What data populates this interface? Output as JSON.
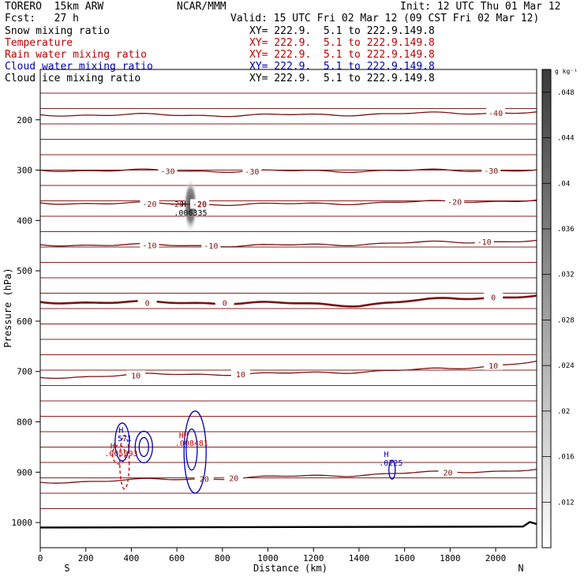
{
  "header": {
    "model": "TORERO  15km ARW",
    "center": "NCAR/MMM",
    "init": "Init: 12 UTC Thu 01 Mar 12",
    "fcst": "Fcst:   27 h",
    "valid": "Valid: 15 UTC Fri 02 Mar 12 (09 CST Fri 02 Mar 12)",
    "fields": [
      {
        "label": "Snow mixing ratio",
        "xy": "XY= 222.9.  5.1 to 222.9.149.8",
        "color": "#000000"
      },
      {
        "label": "Temperature",
        "xy": "XY= 222.9.  5.1 to 222.9.149.8",
        "color": "#c00000"
      },
      {
        "label": "Rain water mixing ratio",
        "xy": "XY= 222.9.  5.1 to 222.9.149.8",
        "color": "#c00000"
      },
      {
        "label": "Cloud water mixing ratio",
        "xy": "XY= 222.9.  5.1 to 222.9.149.8",
        "color": "#0000b0"
      },
      {
        "label": "Cloud ice mixing ratio",
        "xy": "XY= 222.9.  5.1 to 222.9.149.8",
        "color": "#000000"
      }
    ]
  },
  "chart_data": {
    "type": "contour",
    "xlabel": "Distance (km)",
    "ylabel": "Pressure (hPa)",
    "xlim": [
      0,
      2180
    ],
    "ylim": [
      1050,
      100
    ],
    "x_ticks": [
      0,
      200,
      400,
      600,
      800,
      1000,
      1200,
      1400,
      1600,
      1800,
      2000
    ],
    "y_ticks": [
      200,
      300,
      400,
      500,
      600,
      700,
      800,
      900,
      1000
    ],
    "x_end_labels": {
      "left": "S",
      "right": "N"
    },
    "colorbar": {
      "unit": "g kg⁻¹",
      "ticks": [
        ".012",
        ".016",
        ".02",
        ".024",
        ".028",
        ".032",
        ".036",
        ".04",
        ".044",
        ".048"
      ],
      "values": [
        0.012,
        0.016,
        0.02,
        0.024,
        0.028,
        0.032,
        0.036,
        0.04,
        0.044,
        0.048
      ],
      "range": [
        0.008,
        0.05
      ]
    },
    "temperature_isotherms": [
      {
        "label": "-40",
        "p": [
          [
            0,
            190
          ],
          [
            1000,
            191
          ],
          [
            2180,
            185
          ]
        ],
        "labels_at": [
          2000
        ]
      },
      {
        "label": "-30",
        "p": [
          [
            0,
            300
          ],
          [
            1000,
            302
          ],
          [
            2180,
            300
          ]
        ],
        "labels_at": [
          560,
          930,
          1980
        ]
      },
      {
        "label": "-20",
        "p": [
          [
            0,
            365
          ],
          [
            1000,
            368
          ],
          [
            2180,
            360
          ]
        ],
        "labels_at": [
          480,
          700,
          1820
        ]
      },
      {
        "label": "-10",
        "p": [
          [
            0,
            448
          ],
          [
            1000,
            450
          ],
          [
            2180,
            440
          ]
        ],
        "labels_at": [
          480,
          750,
          1950
        ]
      },
      {
        "label": "0",
        "p": [
          [
            0,
            562
          ],
          [
            1000,
            564
          ],
          [
            1400,
            568
          ],
          [
            1800,
            555
          ],
          [
            2180,
            550
          ]
        ],
        "labels_at": [
          470,
          810,
          1990
        ],
        "emphasis": true
      },
      {
        "label": "10",
        "p": [
          [
            0,
            712
          ],
          [
            600,
            705
          ],
          [
            1000,
            705
          ],
          [
            1800,
            695
          ],
          [
            2180,
            680
          ]
        ],
        "labels_at": [
          420,
          880,
          1990
        ]
      },
      {
        "label": "20",
        "p": [
          [
            0,
            920
          ],
          [
            1000,
            910
          ],
          [
            2180,
            895
          ]
        ],
        "labels_at": [
          720,
          850,
          1790
        ]
      }
    ],
    "annotations": [
      {
        "text": "H",
        "x": 630,
        "p": 373,
        "color": "#000000"
      },
      {
        "text": "-20",
        "x": 600,
        "p": 373,
        "color": "#7a1212"
      },
      {
        "text": "20",
        "x": 710,
        "p": 373,
        "color": "#7a1212"
      },
      {
        "text": ".006335",
        "x": 660,
        "p": 390,
        "color": "#000000"
      },
      {
        "text": "H",
        "x": 355,
        "p": 822,
        "color": "#0000b0"
      },
      {
        "text": ".571",
        "x": 360,
        "p": 838,
        "color": "#0000b0"
      },
      {
        "text": "H",
        "x": 318,
        "p": 853,
        "color": "#c00000"
      },
      {
        "text": ".005993",
        "x": 355,
        "p": 868,
        "color": "#c00000"
      },
      {
        "text": "HH",
        "x": 630,
        "p": 832,
        "color": "#c00000"
      },
      {
        "text": ".008481",
        "x": 665,
        "p": 848,
        "color": "#c00000"
      },
      {
        "text": "H",
        "x": 1520,
        "p": 870,
        "color": "#0000b0"
      },
      {
        "text": ".0225",
        "x": 1540,
        "p": 887,
        "color": "#0000b0"
      }
    ]
  }
}
